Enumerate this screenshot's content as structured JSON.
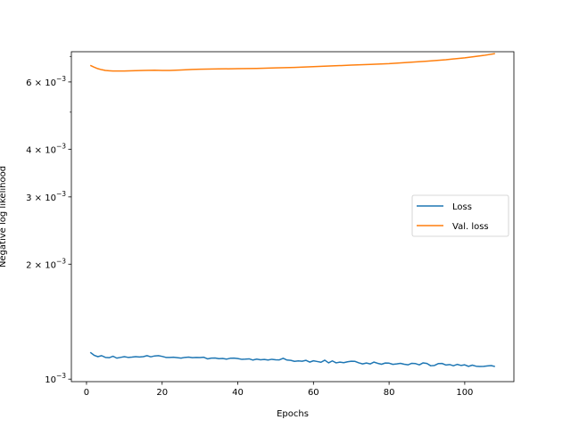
{
  "chart_data": {
    "type": "line",
    "title": "",
    "xlabel": "Epochs",
    "ylabel": "Negative log likelihood",
    "xlim": [
      -4,
      113
    ],
    "ylim": [
      0.000985,
      0.0072
    ],
    "yscale": "log",
    "grid": false,
    "legend_position": "center-right",
    "x_ticks": [
      0,
      20,
      40,
      60,
      80,
      100
    ],
    "y_ticks": [
      {
        "value": 0.001,
        "mantissa": "",
        "exponent": "−3"
      },
      {
        "value": 0.002,
        "mantissa": "2",
        "exponent": "−3"
      },
      {
        "value": 0.003,
        "mantissa": "3",
        "exponent": "−3"
      },
      {
        "value": 0.004,
        "mantissa": "4",
        "exponent": "−3"
      },
      {
        "value": 0.006,
        "mantissa": "6",
        "exponent": "−3"
      }
    ],
    "y_minor_ticks": [
      0.005,
      0.007
    ],
    "tick_base": "10",
    "tick_times": "×",
    "series": [
      {
        "name": "Loss",
        "color": "#1f77b4",
        "x": [
          1,
          2,
          3,
          4,
          5,
          6,
          7,
          8,
          9,
          10,
          11,
          12,
          13,
          14,
          15,
          16,
          17,
          18,
          19,
          20,
          21,
          22,
          23,
          24,
          25,
          26,
          27,
          28,
          29,
          30,
          31,
          32,
          33,
          34,
          35,
          36,
          37,
          38,
          39,
          40,
          41,
          42,
          43,
          44,
          45,
          46,
          47,
          48,
          49,
          50,
          51,
          52,
          53,
          54,
          55,
          56,
          57,
          58,
          59,
          60,
          61,
          62,
          63,
          64,
          65,
          66,
          67,
          68,
          69,
          70,
          71,
          72,
          73,
          74,
          75,
          76,
          77,
          78,
          79,
          80,
          81,
          82,
          83,
          84,
          85,
          86,
          87,
          88,
          89,
          90,
          91,
          92,
          93,
          94,
          95,
          96,
          97,
          98,
          99,
          100,
          101,
          102,
          103,
          104,
          105,
          106,
          107,
          108
        ],
        "y": [
          0.001175,
          0.001155,
          0.001145,
          0.001152,
          0.00114,
          0.001138,
          0.001148,
          0.001135,
          0.00114,
          0.001145,
          0.00114,
          0.001142,
          0.001145,
          0.001143,
          0.001145,
          0.001152,
          0.001144,
          0.00115,
          0.001152,
          0.001147,
          0.00114,
          0.00114,
          0.001141,
          0.001138,
          0.001135,
          0.00114,
          0.001142,
          0.001138,
          0.00114,
          0.001139,
          0.001141,
          0.00113,
          0.001135,
          0.001136,
          0.001131,
          0.001133,
          0.001128,
          0.001134,
          0.001135,
          0.001132,
          0.001127,
          0.001128,
          0.00113,
          0.001122,
          0.001128,
          0.001124,
          0.001126,
          0.001122,
          0.001127,
          0.001124,
          0.001123,
          0.001134,
          0.001122,
          0.00112,
          0.001113,
          0.001116,
          0.001114,
          0.00112,
          0.001108,
          0.001117,
          0.001112,
          0.001107,
          0.001121,
          0.001103,
          0.001116,
          0.001103,
          0.001108,
          0.001104,
          0.00111,
          0.001114,
          0.001113,
          0.001103,
          0.001096,
          0.001102,
          0.001096,
          0.001108,
          0.0011,
          0.001094,
          0.001102,
          0.001101,
          0.001093,
          0.001096,
          0.0011,
          0.001094,
          0.00109,
          0.0011,
          0.001098,
          0.00109,
          0.001103,
          0.001099,
          0.001084,
          0.001086,
          0.001098,
          0.001099,
          0.001089,
          0.001092,
          0.001084,
          0.001093,
          0.001086,
          0.00109,
          0.00108,
          0.001088,
          0.001081,
          0.001079,
          0.00108,
          0.001083,
          0.001085,
          0.001079
        ]
      },
      {
        "name": "Val. loss",
        "color": "#ff7f0e",
        "x": [
          1,
          2,
          3,
          4,
          5,
          6,
          7,
          8,
          10,
          12,
          15,
          18,
          20,
          22,
          25,
          28,
          30,
          35,
          40,
          45,
          50,
          55,
          60,
          65,
          70,
          75,
          80,
          85,
          90,
          95,
          100,
          105,
          108
        ],
        "y": [
          0.00663,
          0.00656,
          0.0065,
          0.00646,
          0.00643,
          0.00642,
          0.00641,
          0.00641,
          0.00641,
          0.00642,
          0.00643,
          0.00644,
          0.00643,
          0.00643,
          0.00645,
          0.00647,
          0.00648,
          0.00649,
          0.0065,
          0.00651,
          0.00653,
          0.00655,
          0.00658,
          0.00661,
          0.00664,
          0.00667,
          0.0067,
          0.00675,
          0.0068,
          0.00686,
          0.00694,
          0.00704,
          0.00712
        ]
      }
    ]
  }
}
